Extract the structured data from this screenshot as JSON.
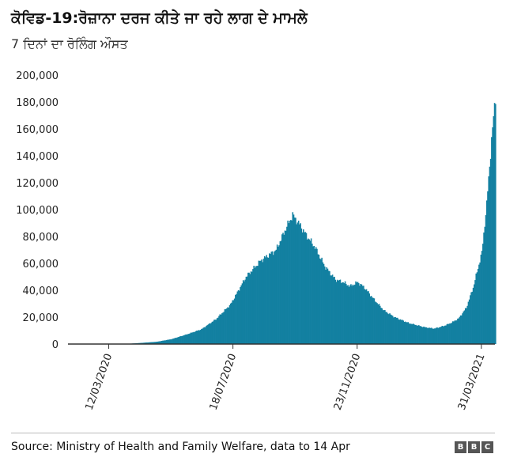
{
  "header": {
    "title": "ਕੋਵਿਡ-19:ਰੋਜ਼ਾਨਾ ਦਰਜ ਕੀਤੇ ਜਾ ਰਹੇ ਲਾਗ ਦੇ ਮਾਮਲੇ",
    "subtitle": "7 ਦਿਨਾਂ ਦਾ ਰੋਲਿੰਗ ਔਸਤ"
  },
  "footer": {
    "source": "Source: Ministry of Health and Family Welfare, data to 14 Apr",
    "logo_letters": [
      "B",
      "B",
      "C"
    ]
  },
  "colors": {
    "bar": "#1380A1",
    "axis": "#333333",
    "grid": "#dddddd"
  },
  "chart_data": {
    "type": "bar",
    "title": "ਕੋਵਿਡ-19:ਰੋਜ਼ਾਨਾ ਦਰਜ ਕੀਤੇ ਜਾ ਰਹੇ ਲਾਗ ਦੇ ਮਾਮਲੇ",
    "subtitle": "7 ਦਿਨਾਂ ਦਾ ਰੋਲਿੰਗ ਔਸਤ",
    "xlabel": "",
    "ylabel": "",
    "ylim": [
      0,
      200000
    ],
    "yticks": [
      "0",
      "20,000",
      "40,000",
      "60,000",
      "80,000",
      "100,000",
      "120,000",
      "140,000",
      "160,000",
      "180,000",
      "200,000"
    ],
    "xticks": [
      "12/03/2020",
      "18/07/2020",
      "23/11/2020",
      "31/03/2021"
    ],
    "x_range": [
      "2020-01-30",
      "2021-04-14"
    ],
    "grid": false,
    "series_points": [
      [
        "2020-03-01",
        0
      ],
      [
        "2020-03-12",
        10
      ],
      [
        "2020-03-31",
        150
      ],
      [
        "2020-04-15",
        900
      ],
      [
        "2020-04-30",
        1700
      ],
      [
        "2020-05-15",
        3600
      ],
      [
        "2020-05-31",
        7200
      ],
      [
        "2020-06-15",
        11000
      ],
      [
        "2020-06-30",
        18500
      ],
      [
        "2020-07-15",
        29500
      ],
      [
        "2020-07-31",
        50000
      ],
      [
        "2020-08-15",
        62000
      ],
      [
        "2020-08-31",
        70000
      ],
      [
        "2020-09-10",
        86000
      ],
      [
        "2020-09-17",
        96000
      ],
      [
        "2020-09-25",
        88000
      ],
      [
        "2020-09-30",
        82000
      ],
      [
        "2020-10-10",
        72000
      ],
      [
        "2020-10-20",
        58000
      ],
      [
        "2020-10-31",
        48000
      ],
      [
        "2020-11-08",
        46000
      ],
      [
        "2020-11-15",
        43000
      ],
      [
        "2020-11-23",
        46000
      ],
      [
        "2020-11-30",
        42000
      ],
      [
        "2020-12-10",
        33000
      ],
      [
        "2020-12-20",
        25000
      ],
      [
        "2020-12-31",
        20000
      ],
      [
        "2021-01-15",
        15500
      ],
      [
        "2021-01-31",
        12500
      ],
      [
        "2021-02-10",
        11500
      ],
      [
        "2021-02-20",
        13500
      ],
      [
        "2021-02-28",
        16000
      ],
      [
        "2021-03-07",
        19000
      ],
      [
        "2021-03-15",
        27000
      ],
      [
        "2021-03-22",
        42000
      ],
      [
        "2021-03-31",
        68000
      ],
      [
        "2021-04-05",
        104000
      ],
      [
        "2021-04-10",
        152000
      ],
      [
        "2021-04-14",
        184000
      ]
    ]
  }
}
